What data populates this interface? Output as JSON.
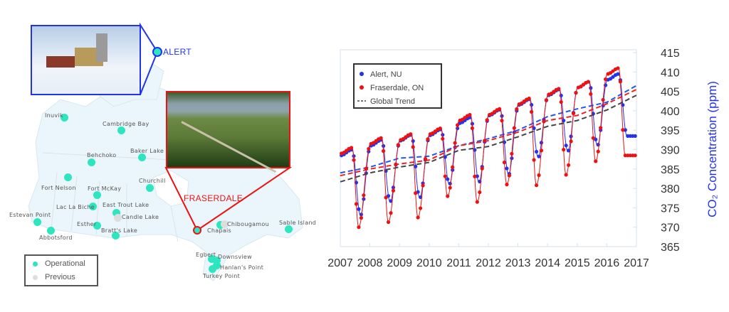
{
  "map": {
    "stations": [
      {
        "name": "Inuvik",
        "status": "operational"
      },
      {
        "name": "Cambridge Bay",
        "status": "operational"
      },
      {
        "name": "Behchoko",
        "status": "operational"
      },
      {
        "name": "Baker Lake",
        "status": "operational"
      },
      {
        "name": "Fort Nelson",
        "status": "operational"
      },
      {
        "name": "Churchill",
        "status": "operational"
      },
      {
        "name": "Fort McKay",
        "status": "operational"
      },
      {
        "name": "Lac La Biche",
        "status": "operational"
      },
      {
        "name": "East Trout Lake",
        "status": "operational"
      },
      {
        "name": "Candle Lake",
        "status": "previous"
      },
      {
        "name": "Estevan Point",
        "status": "operational"
      },
      {
        "name": "Esther",
        "status": "operational"
      },
      {
        "name": "Abbotsford",
        "status": "operational"
      },
      {
        "name": "Bratt's Lake",
        "status": "operational"
      },
      {
        "name": "Chapais",
        "status": "operational"
      },
      {
        "name": "Chibougamou",
        "status": "previous"
      },
      {
        "name": "Sable Island",
        "status": "operational"
      },
      {
        "name": "Egbert",
        "status": "operational"
      },
      {
        "name": "Downsview",
        "status": "operational"
      },
      {
        "name": "Hanlan's Point",
        "status": "operational"
      },
      {
        "name": "Turkey Point",
        "status": "operational"
      }
    ],
    "highlight_alert": "ALERT",
    "highlight_fraserdale": "FRASERDALE",
    "legend": {
      "operational": "Operational",
      "previous": "Previous"
    },
    "colors": {
      "operational": "#2de6c0",
      "previous": "#dddddd",
      "alert": "#2233ee",
      "fraserdale": "#ee1111",
      "land": "#eaf6fb"
    }
  },
  "chart_data": {
    "type": "line",
    "xlabel": "",
    "ylabel": "CO₂ Concentration (ppm)",
    "x_ticks": [
      "2007",
      "2008",
      "2009",
      "2010",
      "2011",
      "2012",
      "2013",
      "2014",
      "2015",
      "2016",
      "2017"
    ],
    "y_ticks": [
      "365",
      "370",
      "375",
      "380",
      "385",
      "390",
      "395",
      "400",
      "405",
      "410",
      "415"
    ],
    "xlim": [
      2007,
      2017
    ],
    "ylim": [
      365,
      415
    ],
    "legend_position": "top-left",
    "series": [
      {
        "name": "Alert, NU",
        "color": "#2233ee",
        "style": "points+line",
        "annual_peak": [
          390,
          392.5,
          393.8,
          395.2,
          398.3,
          400.3,
          403,
          405.5,
          407.5,
          409.5,
          410
        ],
        "annual_trough": [
          373,
          376.5,
          377.5,
          381,
          381.5,
          383.5,
          388,
          389.5,
          391,
          393.5
        ],
        "trend": [
          384,
          385.5,
          387.8,
          388.3,
          391,
          392.8,
          395,
          398.5,
          400.5,
          402.2,
          406.5
        ],
        "trend_color": "#2255ee"
      },
      {
        "name": "Fraserdale, ON",
        "color": "#ee1111",
        "style": "points+line",
        "annual_peak": [
          390.5,
          393,
          394,
          395.5,
          399,
          400.5,
          403.2,
          405.7,
          407.5,
          411,
          412.5
        ],
        "annual_trough": [
          370,
          371.3,
          372.5,
          378,
          376.5,
          381,
          380.8,
          383.5,
          387,
          388.5
        ],
        "trend": [
          383.3,
          385,
          386.3,
          387.3,
          391,
          392.3,
          394.5,
          397.5,
          398.8,
          401.8,
          405.5
        ],
        "trend_color": "#ee2222"
      },
      {
        "name": "Global Trend",
        "color": "#444444",
        "style": "dashed",
        "trend": [
          381.7,
          384,
          385.5,
          386.7,
          389.8,
          390.8,
          393.3,
          396,
          397.5,
          400.2,
          404
        ]
      }
    ]
  }
}
